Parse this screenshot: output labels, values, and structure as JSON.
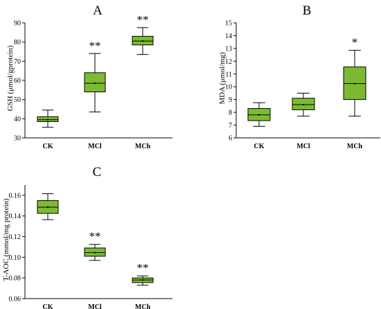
{
  "chart_data": [
    {
      "type": "box",
      "panel": "A",
      "ylabel": "GSH (μmol/gprotein)",
      "ylim": [
        30,
        90
      ],
      "yticks": [
        30,
        40,
        50,
        60,
        70,
        80,
        90
      ],
      "categories": [
        "CK",
        "MCl",
        "MCh"
      ],
      "boxes": [
        {
          "category": "CK",
          "min": 35.5,
          "q1": 38.5,
          "median": 39.5,
          "mean": 39.5,
          "q3": 41.0,
          "max": 44.5,
          "sig": ""
        },
        {
          "category": "MCl",
          "min": 43.5,
          "q1": 54.0,
          "median": 58.5,
          "mean": 58.5,
          "q3": 64.0,
          "max": 74.0,
          "sig": "**"
        },
        {
          "category": "MCh",
          "min": 73.5,
          "q1": 78.5,
          "median": 80.5,
          "mean": 80.5,
          "q3": 83.0,
          "max": 87.5,
          "sig": "**"
        }
      ]
    },
    {
      "type": "box",
      "panel": "B",
      "ylabel": "MDA (μmol/mg)",
      "ylim": [
        6,
        15
      ],
      "yticks": [
        6,
        7,
        8,
        9,
        10,
        11,
        12,
        13,
        14,
        15
      ],
      "categories": [
        "CK",
        "MCl",
        "MCh"
      ],
      "boxes": [
        {
          "category": "CK",
          "min": 6.9,
          "q1": 7.35,
          "median": 7.8,
          "mean": 7.8,
          "q3": 8.3,
          "max": 8.75,
          "sig": ""
        },
        {
          "category": "MCl",
          "min": 7.7,
          "q1": 8.2,
          "median": 8.6,
          "mean": 8.6,
          "q3": 9.1,
          "max": 9.5,
          "sig": ""
        },
        {
          "category": "MCh",
          "min": 7.7,
          "q1": 9.0,
          "median": 10.25,
          "mean": 10.25,
          "q3": 11.55,
          "max": 12.85,
          "sig": "*"
        }
      ]
    },
    {
      "type": "box",
      "panel": "C",
      "ylabel": "T-AOC (mmol/mg protein)",
      "ylim": [
        0.06,
        0.17
      ],
      "yticks": [
        "0.06",
        "0.08",
        "0.10",
        "0.12",
        "0.14",
        "0.16"
      ],
      "categories": [
        "CK",
        "MCl",
        "MCh"
      ],
      "boxes": [
        {
          "category": "CK",
          "min": 0.1365,
          "q1": 0.1425,
          "median": 0.1485,
          "mean": 0.1485,
          "q3": 0.155,
          "max": 0.1615,
          "sig": ""
        },
        {
          "category": "MCl",
          "min": 0.097,
          "q1": 0.101,
          "median": 0.1045,
          "mean": 0.1045,
          "q3": 0.109,
          "max": 0.1125,
          "sig": "**"
        },
        {
          "category": "MCh",
          "min": 0.073,
          "q1": 0.0755,
          "median": 0.078,
          "mean": 0.078,
          "q3": 0.08,
          "max": 0.082,
          "sig": "**"
        }
      ]
    }
  ],
  "colors": {
    "box_fill": "#7cbb31",
    "stroke": "#000000"
  }
}
